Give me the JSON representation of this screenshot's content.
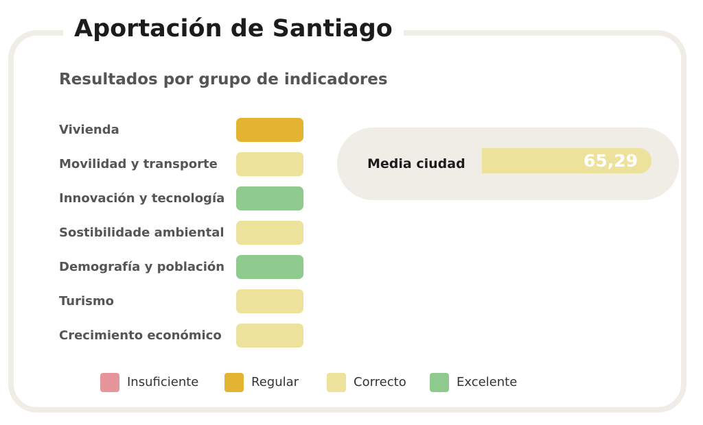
{
  "title": "Aportación de Santiago",
  "subtitle": "Resultados por grupo de indicadores",
  "colors": {
    "insuficiente": "#e6959a",
    "regular": "#e2b432",
    "correcto": "#ede29c",
    "excelente": "#8fca8f",
    "panel_border": "#f0ede6"
  },
  "indicators": [
    {
      "label": "Vivienda",
      "rating": "regular"
    },
    {
      "label": "Movilidad y transporte",
      "rating": "correcto"
    },
    {
      "label": "Innovación y tecnología",
      "rating": "excelente"
    },
    {
      "label": "Sostibilidade ambiental",
      "rating": "correcto"
    },
    {
      "label": "Demografía y población",
      "rating": "excelente"
    },
    {
      "label": "Turismo",
      "rating": "correcto"
    },
    {
      "label": "Crecimiento económico",
      "rating": "correcto"
    }
  ],
  "media": {
    "label": "Media ciudad",
    "value": "65,29",
    "rating": "correcto"
  },
  "legend": [
    {
      "label": "Insuficiente",
      "key": "insuficiente"
    },
    {
      "label": "Regular",
      "key": "regular"
    },
    {
      "label": "Correcto",
      "key": "correcto"
    },
    {
      "label": "Excelente",
      "key": "excelente"
    }
  ]
}
